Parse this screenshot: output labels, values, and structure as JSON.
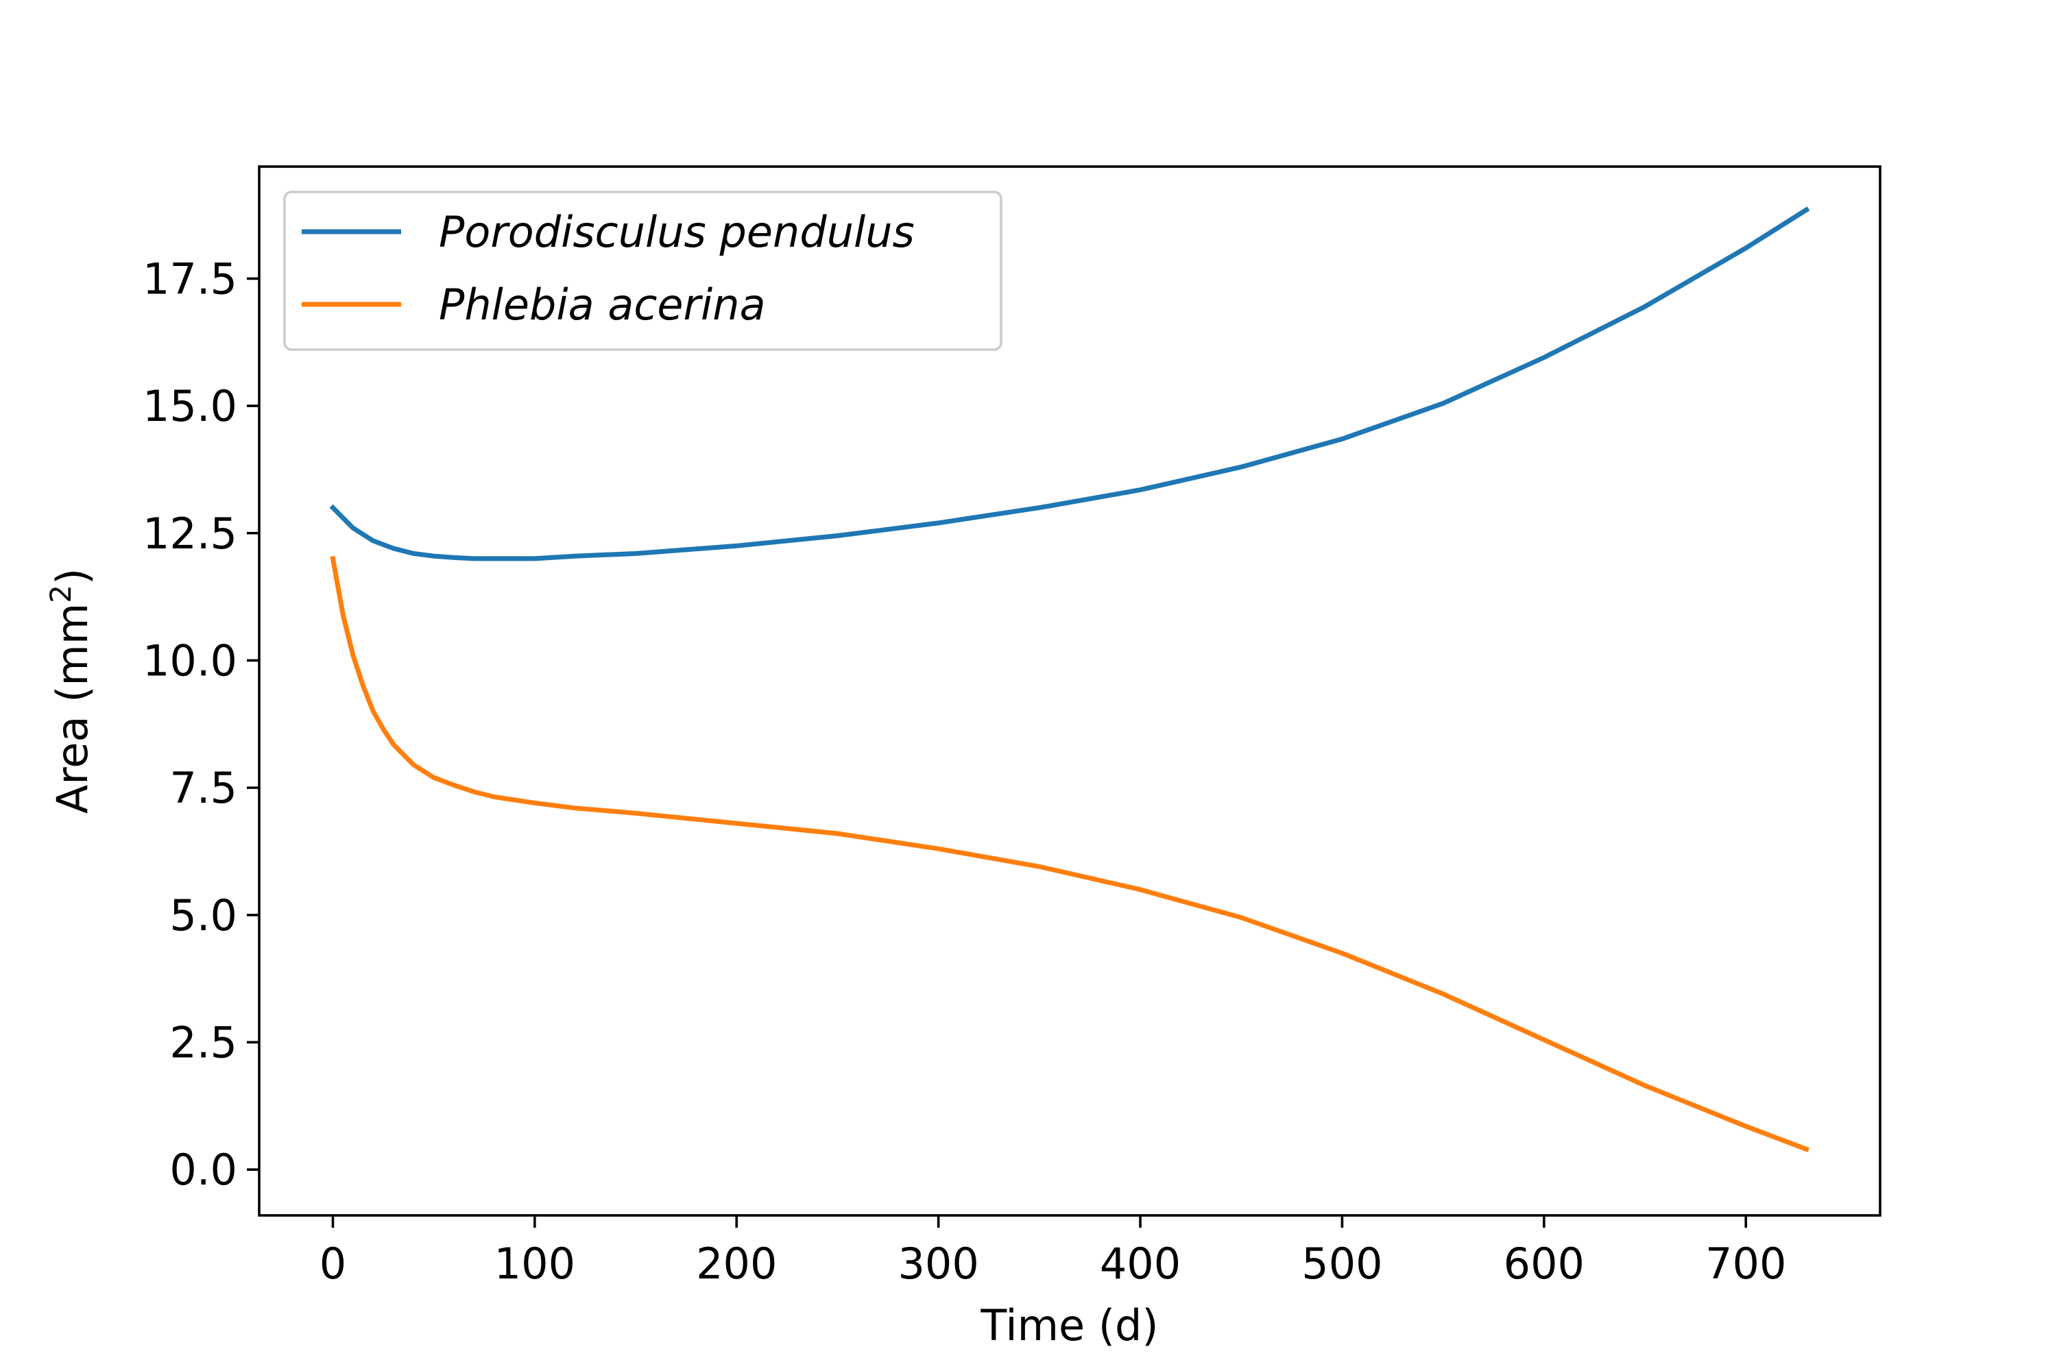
{
  "chart_data": {
    "type": "line",
    "title": "",
    "xlabel": "Time (d)",
    "ylabel": {
      "base": "Area (mm",
      "superscript": "2",
      "suffix": ")"
    },
    "xlim": [
      -36.5,
      766.5
    ],
    "ylim": [
      -0.9,
      19.7
    ],
    "xticks": [
      0,
      100,
      200,
      300,
      400,
      500,
      600,
      700
    ],
    "xtick_labels": [
      "0",
      "100",
      "200",
      "300",
      "400",
      "500",
      "600",
      "700"
    ],
    "yticks": [
      0,
      2.5,
      5,
      7.5,
      10,
      12.5,
      15,
      17.5
    ],
    "ytick_labels": [
      "0.0",
      "2.5",
      "5.0",
      "7.5",
      "10.0",
      "12.5",
      "15.0",
      "17.5"
    ],
    "grid": false,
    "legend": "top-left",
    "series": [
      {
        "name": "Porodisculus pendulus",
        "color": "#1f77b4",
        "x": [
          0,
          10,
          20,
          30,
          40,
          50,
          60,
          70,
          80,
          90,
          100,
          120,
          150,
          200,
          250,
          300,
          350,
          400,
          450,
          500,
          550,
          600,
          650,
          700,
          730
        ],
        "y": [
          13.0,
          12.6,
          12.35,
          12.2,
          12.1,
          12.05,
          12.02,
          12.0,
          12.0,
          12.0,
          12.0,
          12.05,
          12.1,
          12.25,
          12.45,
          12.7,
          13.0,
          13.35,
          13.8,
          14.35,
          15.05,
          15.95,
          16.95,
          18.1,
          18.85
        ]
      },
      {
        "name": "Phlebia acerina",
        "color": "#ff7f0e",
        "x": [
          0,
          5,
          10,
          15,
          20,
          25,
          30,
          40,
          50,
          60,
          70,
          80,
          100,
          120,
          150,
          200,
          250,
          300,
          350,
          400,
          450,
          500,
          550,
          600,
          650,
          700,
          730
        ],
        "y": [
          12.0,
          10.9,
          10.1,
          9.5,
          9.0,
          8.65,
          8.35,
          7.95,
          7.7,
          7.55,
          7.42,
          7.32,
          7.2,
          7.1,
          7.0,
          6.8,
          6.6,
          6.3,
          5.95,
          5.5,
          4.95,
          4.25,
          3.45,
          2.55,
          1.65,
          0.85,
          0.4
        ]
      }
    ]
  }
}
